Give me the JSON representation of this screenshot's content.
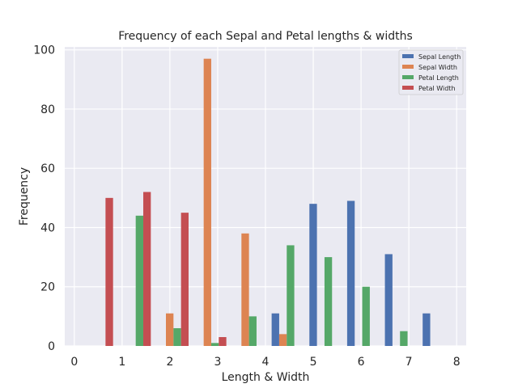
{
  "chart_data": {
    "type": "bar",
    "title": "Frequency of each Sepal and Petal lengths & widths",
    "xlabel": "Length & Width",
    "ylabel": "Frequency",
    "xlim": [
      -0.2,
      8.2
    ],
    "ylim": [
      0,
      101
    ],
    "xticks": [
      0,
      1,
      2,
      3,
      4,
      5,
      6,
      7,
      8
    ],
    "yticks": [
      0,
      20,
      40,
      60,
      80,
      100
    ],
    "bin_edges": [
      0.1,
      0.89,
      1.68,
      2.47,
      3.26,
      4.05,
      4.84,
      5.63,
      6.42,
      7.21,
      8.0
    ],
    "grid": true,
    "legend_position": "top-right",
    "series": [
      {
        "name": "Sepal Length",
        "color": "#4c72b0",
        "values": [
          0,
          0,
          0,
          0,
          0,
          11,
          48,
          49,
          31,
          11
        ]
      },
      {
        "name": "Sepal Width",
        "color": "#dd8452",
        "values": [
          0,
          0,
          11,
          97,
          38,
          4,
          0,
          0,
          0,
          0
        ]
      },
      {
        "name": "Petal Length",
        "color": "#55a868",
        "values": [
          0,
          44,
          6,
          1,
          10,
          34,
          30,
          20,
          5,
          0
        ]
      },
      {
        "name": "Petal Width",
        "color": "#c44e52",
        "values": [
          50,
          52,
          45,
          3,
          0,
          0,
          0,
          0,
          0,
          0
        ]
      }
    ]
  }
}
